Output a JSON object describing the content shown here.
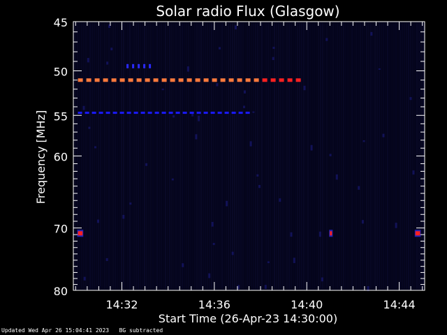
{
  "chart_data": {
    "type": "heatmap",
    "title": "Solar radio Flux (Glasgow)",
    "xlabel": "Start Time (26-Apr-23 14:30:00)",
    "ylabel": "Frequency [MHz]",
    "x_tick_labels": [
      "14:32",
      "14:36",
      "14:40",
      "14:44"
    ],
    "x_ticks_minutes": [
      2,
      6,
      10,
      14
    ],
    "xlim_minutes_after_start": [
      -0.1,
      15.1
    ],
    "y_tick_labels": [
      "45",
      "50",
      "55",
      "60",
      "70",
      "80"
    ],
    "y_ticks": [
      45,
      50,
      55,
      60,
      70,
      80
    ],
    "ylim": [
      45,
      80
    ],
    "y_scale": "log",
    "background_subtracted": true,
    "features": [
      {
        "label": "band_51MHz",
        "frequency": 51,
        "t_start": 0.1,
        "t_end": 9.7,
        "intensity": "high",
        "color": "#ff7a3c",
        "end_color": "#ff2020"
      },
      {
        "label": "band_55MHz",
        "frequency": 54.7,
        "t_start": 0.1,
        "t_end": 7.5,
        "intensity": "low",
        "color": "#1a1aff"
      },
      {
        "label": "dots_49_5MHz",
        "frequency": 49.5,
        "t_start": 2.2,
        "t_end": 3.3,
        "intensity": "low",
        "color": "#2a2aff"
      },
      {
        "label": "spot_71MHz_left",
        "frequency": 70.8,
        "t_start": 0.1,
        "t_end": 0.3,
        "intensity": "high",
        "color": "#ff2020"
      },
      {
        "label": "spot_71MHz_right",
        "frequency": 70.8,
        "t_start": 14.7,
        "t_end": 14.9,
        "intensity": "high",
        "color": "#ff2020"
      },
      {
        "label": "spot_71MHz_mid",
        "frequency": 70.8,
        "t_start": 11.0,
        "t_end": 11.05,
        "intensity": "medium",
        "color": "#ff2020"
      }
    ],
    "colors": {
      "background": "#000000",
      "plot_bg": "#04041a",
      "axis": "#ffffff"
    }
  },
  "footer": {
    "updated": "Updated Wed Apr 26 15:04:41 2023",
    "note": "BG subtracted"
  }
}
